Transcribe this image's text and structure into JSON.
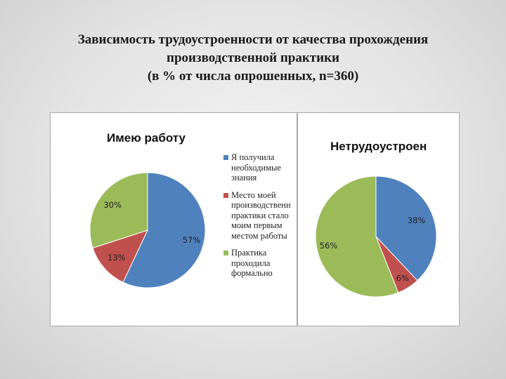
{
  "slide": {
    "title_lines": [
      "Зависимость трудоустроенности от качества прохождения",
      "производственной практики",
      "(в % от числа опрошенных, n=360)"
    ]
  },
  "legend": [
    {
      "label": "Я получила необходимые знания",
      "color": "#4f81bd"
    },
    {
      "label": "Место моей производственн практики стало моим первым местом работы",
      "color": "#c0504d"
    },
    {
      "label": "Практика проходила формально",
      "color": "#9bbb59"
    }
  ],
  "chart_data": [
    {
      "type": "pie",
      "title": "Имею работу",
      "categories": [
        "Я получила необходимые знания",
        "Место моей производственн практики стало моим первым местом работы",
        "Практика проходила формально"
      ],
      "values": [
        57,
        13,
        30
      ],
      "value_labels": [
        "57%",
        "13%",
        "30%"
      ],
      "colors": [
        "#4f81bd",
        "#c0504d",
        "#9bbb59"
      ],
      "start_angle_deg": 0,
      "direction": "clockwise"
    },
    {
      "type": "pie",
      "title": "Нетрудоустроен",
      "categories": [
        "Я получила необходимые знания",
        "Место моей производственн практики стало моим первым местом работы",
        "Практика проходила формально"
      ],
      "values": [
        38,
        6,
        56
      ],
      "value_labels": [
        "38%",
        "6%",
        "56%"
      ],
      "colors": [
        "#4f81bd",
        "#c0504d",
        "#9bbb59"
      ],
      "start_angle_deg": 0,
      "direction": "clockwise"
    }
  ]
}
